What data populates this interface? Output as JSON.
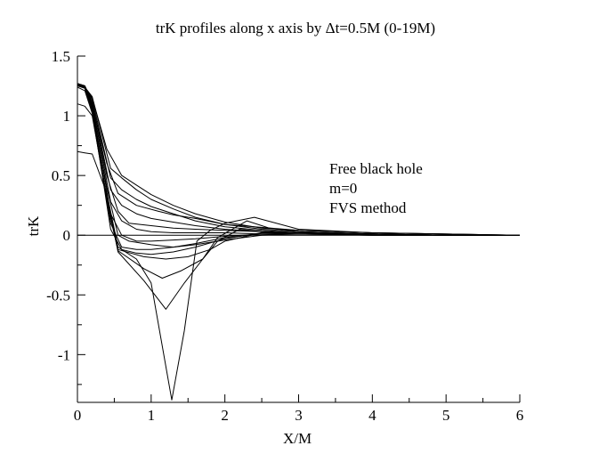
{
  "chart_data": {
    "type": "line",
    "title": "trK  profiles along x axis by Δt=0.5M (0-19M)",
    "xlabel": "X/M",
    "ylabel": "trK",
    "xlim": [
      0,
      6
    ],
    "ylim": [
      -1.4,
      1.5
    ],
    "x_ticks": [
      "0",
      "1",
      "2",
      "3",
      "4",
      "5",
      "6"
    ],
    "y_ticks": [
      "1.5",
      "1",
      "0.5",
      "0",
      "-0.5",
      "-1"
    ],
    "annotations": [
      "Free black hole",
      "m=0",
      "FVS method"
    ],
    "grid": false,
    "legend": "none",
    "series": [
      {
        "x": [
          0,
          0.1,
          0.2,
          0.4,
          0.6,
          0.8,
          1.0,
          1.3,
          1.6,
          2.0,
          2.5,
          3,
          4,
          5,
          6
        ],
        "values": [
          1.26,
          1.24,
          1.15,
          0.72,
          0.5,
          0.42,
          0.34,
          0.25,
          0.18,
          0.11,
          0.06,
          0.04,
          0.02,
          0.01,
          0.0
        ]
      },
      {
        "x": [
          0,
          0.1,
          0.2,
          0.4,
          0.55,
          0.8,
          1.1,
          1.3,
          1.6,
          2.0,
          2.4,
          3,
          4,
          5,
          6
        ],
        "values": [
          1.27,
          1.25,
          1.1,
          0.6,
          0.35,
          0.25,
          0.2,
          0.17,
          0.14,
          0.09,
          0.07,
          0.04,
          0.02,
          0.01,
          0.0
        ]
      },
      {
        "x": [
          0,
          0.1,
          0.2,
          0.4,
          0.55,
          0.7,
          1.0,
          1.3,
          1.6,
          2.0,
          2.5,
          3,
          4,
          5,
          6
        ],
        "values": [
          1.27,
          1.24,
          1.08,
          0.5,
          0.2,
          0.1,
          0.08,
          0.06,
          0.05,
          0.04,
          0.03,
          0.02,
          0.01,
          0.0,
          0.0
        ]
      },
      {
        "x": [
          0,
          0.1,
          0.2,
          0.4,
          0.55,
          0.7,
          1.0,
          1.3,
          1.6,
          2.0,
          2.5,
          3,
          4,
          5,
          6
        ],
        "values": [
          1.27,
          1.24,
          1.06,
          0.4,
          0.0,
          -0.05,
          -0.08,
          -0.1,
          -0.08,
          -0.04,
          0.0,
          0.01,
          0.01,
          0.0,
          0.0
        ]
      },
      {
        "x": [
          0,
          0.1,
          0.2,
          0.4,
          0.55,
          0.9,
          1.2,
          1.5,
          1.8,
          2.0,
          2.5,
          3,
          4,
          5,
          6
        ],
        "values": [
          1.26,
          1.23,
          1.04,
          0.3,
          -0.12,
          -0.18,
          -0.2,
          -0.18,
          -0.12,
          -0.05,
          0.02,
          0.02,
          0.01,
          0.0,
          0.0
        ]
      },
      {
        "x": [
          0,
          0.1,
          0.2,
          0.4,
          0.55,
          0.9,
          1.15,
          1.4,
          1.7,
          1.9,
          2.2,
          2.5,
          3,
          4,
          5,
          6
        ],
        "values": [
          1.24,
          1.21,
          1.02,
          0.28,
          -0.13,
          -0.28,
          -0.36,
          -0.3,
          -0.2,
          -0.05,
          0.05,
          0.03,
          0.02,
          0.01,
          0.0,
          0.0
        ]
      },
      {
        "x": [
          0,
          0.1,
          0.2,
          0.4,
          0.55,
          0.9,
          1.2,
          1.45,
          1.7,
          1.9,
          2.3,
          2.6,
          3,
          4,
          5,
          6
        ],
        "values": [
          1.1,
          1.08,
          1.0,
          0.32,
          -0.14,
          -0.38,
          -0.62,
          -0.4,
          -0.2,
          -0.02,
          0.12,
          0.06,
          0.03,
          0.01,
          0.0,
          0.0
        ]
      },
      {
        "x": [
          0,
          0.1,
          0.2,
          0.4,
          0.55,
          0.8,
          1.0,
          1.28,
          1.45,
          1.62,
          1.8,
          2.0,
          2.4,
          3,
          4,
          5,
          6
        ],
        "values": [
          0.7,
          0.69,
          0.68,
          0.35,
          -0.1,
          -0.2,
          -0.4,
          -1.38,
          -0.8,
          -0.05,
          0.04,
          0.1,
          0.15,
          0.05,
          0.02,
          0.01,
          0.0
        ]
      },
      {
        "x": [
          0,
          0.1,
          0.2,
          0.45,
          0.6,
          0.8,
          1.0,
          1.3,
          1.6,
          2.0,
          2.5,
          3,
          4,
          5,
          6
        ],
        "values": [
          1.26,
          1.24,
          1.16,
          0.56,
          0.48,
          0.38,
          0.3,
          0.22,
          0.15,
          0.09,
          0.05,
          0.03,
          0.01,
          0.0,
          0.0
        ]
      },
      {
        "x": [
          0,
          0.1,
          0.2,
          0.45,
          0.6,
          0.8,
          1.0,
          1.3,
          1.6,
          2.0,
          2.5,
          3,
          4,
          5,
          6
        ],
        "values": [
          1.26,
          1.24,
          1.14,
          0.48,
          0.38,
          0.3,
          0.24,
          0.18,
          0.12,
          0.07,
          0.04,
          0.02,
          0.01,
          0.0,
          0.0
        ]
      },
      {
        "x": [
          0,
          0.1,
          0.2,
          0.45,
          0.6,
          0.8,
          1.0,
          1.3,
          1.6,
          2.0,
          2.5,
          3,
          4,
          5,
          6
        ],
        "values": [
          1.27,
          1.25,
          1.12,
          0.38,
          0.25,
          0.18,
          0.14,
          0.11,
          0.08,
          0.05,
          0.03,
          0.02,
          0.01,
          0.0,
          0.0
        ]
      },
      {
        "x": [
          0,
          0.1,
          0.2,
          0.45,
          0.6,
          0.8,
          1.0,
          1.3,
          1.6,
          2.0,
          2.5,
          3,
          4,
          5,
          6
        ],
        "values": [
          1.27,
          1.25,
          1.1,
          0.28,
          0.12,
          0.05,
          0.03,
          0.02,
          0.02,
          0.02,
          0.01,
          0.01,
          0.01,
          0.0,
          0.0
        ]
      },
      {
        "x": [
          0,
          0.1,
          0.2,
          0.45,
          0.6,
          0.8,
          1.0,
          1.3,
          1.6,
          2.0,
          2.5,
          3,
          4,
          5,
          6
        ],
        "values": [
          1.27,
          1.25,
          1.08,
          0.18,
          0.0,
          -0.05,
          -0.05,
          -0.04,
          -0.03,
          -0.01,
          0.01,
          0.01,
          0.0,
          0.0,
          0.0
        ]
      },
      {
        "x": [
          0,
          0.1,
          0.2,
          0.45,
          0.6,
          0.8,
          1.0,
          1.3,
          1.6,
          2.0,
          2.5,
          3,
          4,
          5,
          6
        ],
        "values": [
          1.26,
          1.24,
          1.06,
          0.1,
          -0.1,
          -0.12,
          -0.12,
          -0.1,
          -0.07,
          -0.02,
          0.01,
          0.01,
          0.0,
          0.0,
          0.0
        ]
      },
      {
        "x": [
          0,
          0.1,
          0.2,
          0.45,
          0.6,
          0.8,
          1.0,
          1.3,
          1.6,
          2.0,
          2.5,
          3,
          4,
          5,
          6
        ],
        "values": [
          1.25,
          1.23,
          1.05,
          0.05,
          -0.12,
          -0.15,
          -0.16,
          -0.14,
          -0.1,
          -0.03,
          0.02,
          0.01,
          0.0,
          0.0,
          0.0
        ]
      }
    ]
  }
}
